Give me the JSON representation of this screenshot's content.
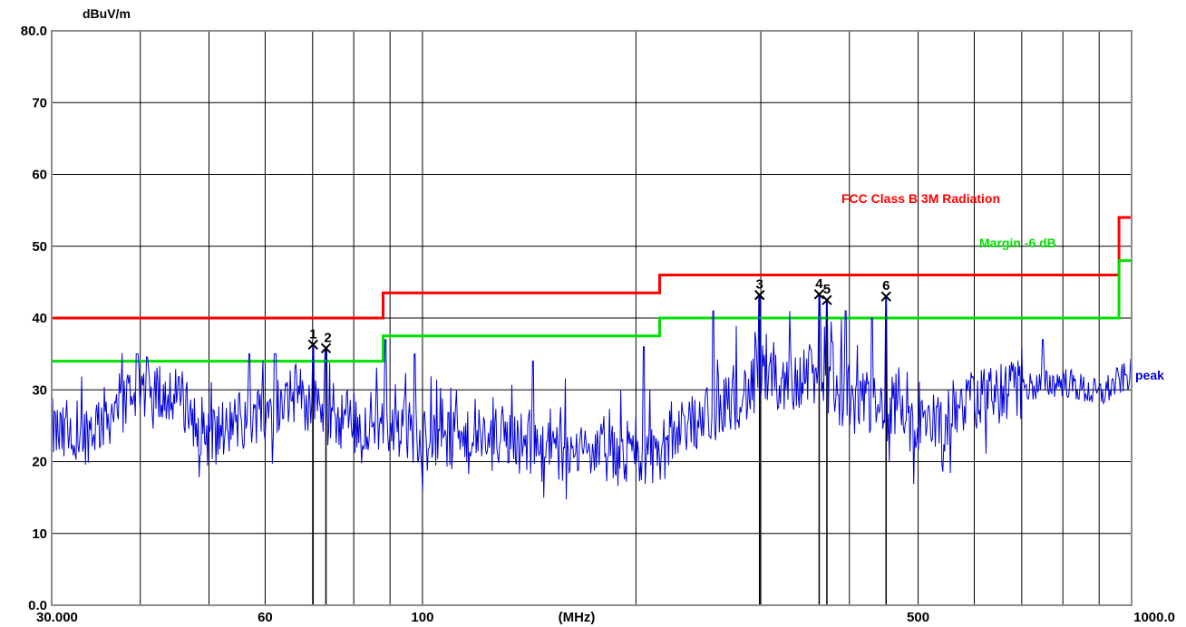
{
  "chart_data": {
    "type": "line",
    "xscale": "log",
    "xlim": [
      30,
      1000
    ],
    "ylim": [
      0,
      80
    ],
    "ylabel": "dBuV/m",
    "xlabel": "(MHz)",
    "grid": true,
    "x_ticks": [
      {
        "value": 30,
        "label": "30.000"
      },
      {
        "value": 60,
        "label": "60"
      },
      {
        "value": 100,
        "label": "100"
      },
      {
        "value": 500,
        "label": "500"
      },
      {
        "value": 1000,
        "label": "1000.0"
      }
    ],
    "y_ticks": [
      {
        "value": 0,
        "label": "0.0"
      },
      {
        "value": 10,
        "label": "10"
      },
      {
        "value": 20,
        "label": "20"
      },
      {
        "value": 30,
        "label": "30"
      },
      {
        "value": 40,
        "label": "40"
      },
      {
        "value": 50,
        "label": "50"
      },
      {
        "value": 60,
        "label": "60"
      },
      {
        "value": 70,
        "label": "70"
      },
      {
        "value": 80,
        "label": "80.0"
      }
    ],
    "series": [
      {
        "name": "FCC Class B 3M Radiation",
        "color": "#ff0000",
        "kind": "limit-step",
        "x": [
          30,
          88,
          88,
          216,
          216,
          960,
          960,
          1000
        ],
        "y": [
          40,
          40,
          43.5,
          43.5,
          46,
          46,
          54,
          54
        ]
      },
      {
        "name": "Margin -6 dB",
        "color": "#00e000",
        "kind": "limit-step",
        "x": [
          30,
          88,
          88,
          216,
          216,
          960,
          960,
          1000
        ],
        "y": [
          34,
          34,
          37.5,
          37.5,
          40,
          40,
          48,
          48
        ]
      },
      {
        "name": "peak",
        "color": "#0000dd",
        "kind": "noise-trace",
        "envelope_x": [
          30,
          32,
          36,
          40,
          45,
          50,
          55,
          60,
          66,
          72,
          80,
          88,
          95,
          105,
          115,
          130,
          150,
          170,
          190,
          216,
          240,
          270,
          300,
          330,
          360,
          400,
          450,
          500,
          550,
          600,
          700,
          800,
          900,
          960,
          1000
        ],
        "envelope_y": [
          24,
          22,
          26,
          30,
          29,
          23,
          25,
          27,
          29,
          27,
          25,
          25,
          24,
          22,
          22,
          23,
          21,
          21,
          20,
          21,
          25,
          28,
          30,
          31,
          31,
          28,
          27,
          24,
          26,
          28,
          30,
          31,
          29,
          31,
          32
        ],
        "peaks": [
          {
            "x": 39.6,
            "y": 35
          },
          {
            "x": 57,
            "y": 35
          },
          {
            "x": 62,
            "y": 35
          },
          {
            "x": 70.1,
            "y": 36.3
          },
          {
            "x": 73.1,
            "y": 35.8
          },
          {
            "x": 88.7,
            "y": 37
          },
          {
            "x": 97.4,
            "y": 35
          },
          {
            "x": 143,
            "y": 34
          },
          {
            "x": 205,
            "y": 36
          },
          {
            "x": 257,
            "y": 41
          },
          {
            "x": 298.8,
            "y": 43.2
          },
          {
            "x": 362.6,
            "y": 43.3
          },
          {
            "x": 371.8,
            "y": 42.5
          },
          {
            "x": 395,
            "y": 41
          },
          {
            "x": 430,
            "y": 40
          },
          {
            "x": 450.6,
            "y": 43.0
          },
          {
            "x": 750,
            "y": 37
          }
        ]
      }
    ],
    "markers": [
      {
        "label": "1",
        "x": 70.1,
        "y": 36.3
      },
      {
        "label": "2",
        "x": 73.1,
        "y": 35.8
      },
      {
        "label": "3",
        "x": 298.8,
        "y": 43.2
      },
      {
        "label": "4",
        "x": 362.6,
        "y": 43.3
      },
      {
        "label": "5",
        "x": 371.8,
        "y": 42.5
      },
      {
        "label": "6",
        "x": 450.6,
        "y": 43.0
      }
    ],
    "legend_labels": {
      "limit": "FCC Class B 3M Radiation",
      "margin": "Margin -6 dB",
      "trace": "peak"
    }
  }
}
